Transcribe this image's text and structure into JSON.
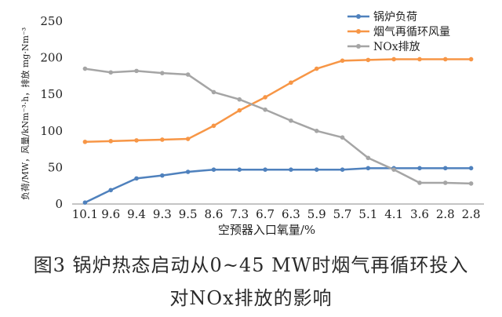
{
  "chart_data": {
    "type": "line",
    "categories": [
      "10.1",
      "9.6",
      "9.4",
      "9.3",
      "9.5",
      "8.6",
      "7.3",
      "6.7",
      "6.3",
      "5.9",
      "5.7",
      "5.1",
      "4.1",
      "3.6",
      "2.8",
      "2.8"
    ],
    "series": [
      {
        "name": "锅炉负荷",
        "color": "#4f81bd",
        "values": [
          2,
          19,
          35,
          39,
          44,
          47,
          47,
          47,
          47,
          47,
          47,
          49,
          49,
          49,
          49,
          49
        ]
      },
      {
        "name": "烟气再循环风量",
        "color": "#f79646",
        "values": [
          85,
          86,
          87,
          88,
          89,
          107,
          128,
          146,
          166,
          185,
          196,
          197,
          198,
          198,
          198,
          198
        ]
      },
      {
        "name": "NOx排放",
        "color": "#a5a5a5",
        "values": [
          185,
          180,
          182,
          179,
          177,
          153,
          143,
          129,
          114,
          100,
          91,
          63,
          47,
          29,
          29,
          28
        ]
      }
    ],
    "xlabel": "空预器入口氧量/%",
    "ylabel": "负荷/MW，风量/kNm⁻³·h，排放 mg·Nm⁻³",
    "ylim": [
      0,
      250
    ],
    "yticks": [
      "0",
      "50",
      "100",
      "150",
      "200",
      "250"
    ],
    "grid": false,
    "legend": "top-right"
  },
  "caption": {
    "line1": "图3    锅炉热态启动从0~45 MW时烟气再循环投入",
    "line2": "对NOx排放的影响"
  }
}
